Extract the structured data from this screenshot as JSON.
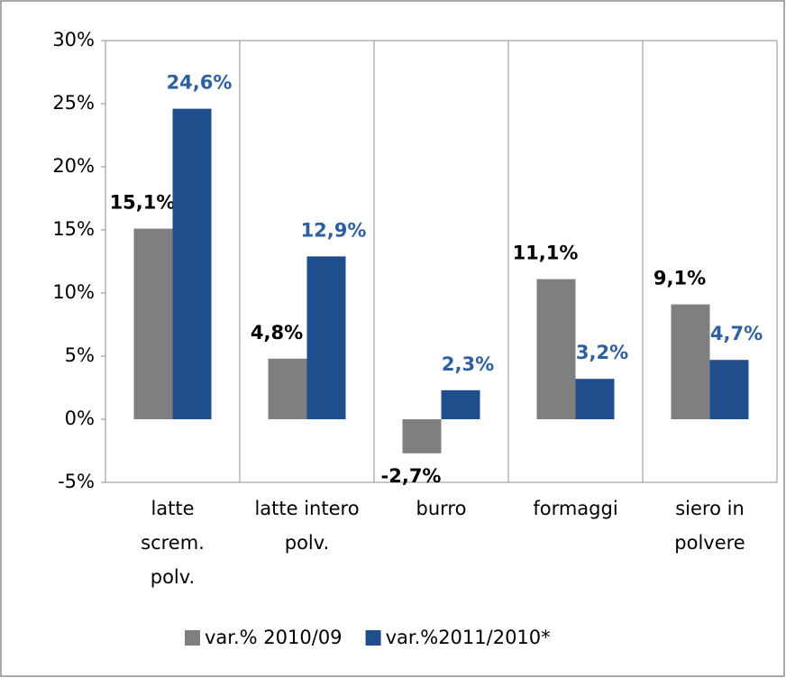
{
  "chart_data": {
    "type": "bar",
    "categories": [
      "latte\nscrem.\npolv.",
      "latte intero\npolv.",
      "burro",
      "formaggi",
      "siero in\npolvere"
    ],
    "series": [
      {
        "name": "var.% 2010/09",
        "color": "#7f7f7f",
        "label_color": "#000000",
        "values": [
          15.1,
          4.8,
          -2.7,
          11.1,
          9.1
        ],
        "value_labels": [
          "15,1%",
          "4,8%",
          "-2,7%",
          "11,1%",
          "9,1%"
        ]
      },
      {
        "name": "var.%2011/2010*",
        "color": "#1f4e8c",
        "label_color": "#2e5f9e",
        "values": [
          24.6,
          12.9,
          2.3,
          3.2,
          4.7
        ],
        "value_labels": [
          "24,6%",
          "12,9%",
          "2,3%",
          "3,2%",
          "4,7%"
        ]
      }
    ],
    "ylim": [
      -5,
      30
    ],
    "yticks": [
      {
        "value": -5,
        "label": "-5%"
      },
      {
        "value": 0,
        "label": "0%"
      },
      {
        "value": 5,
        "label": "5%"
      },
      {
        "value": 10,
        "label": "10%"
      },
      {
        "value": 15,
        "label": "15%"
      },
      {
        "value": 20,
        "label": "20%"
      },
      {
        "value": 25,
        "label": "25%"
      },
      {
        "value": 30,
        "label": "30%"
      }
    ],
    "legend": "bottom"
  }
}
